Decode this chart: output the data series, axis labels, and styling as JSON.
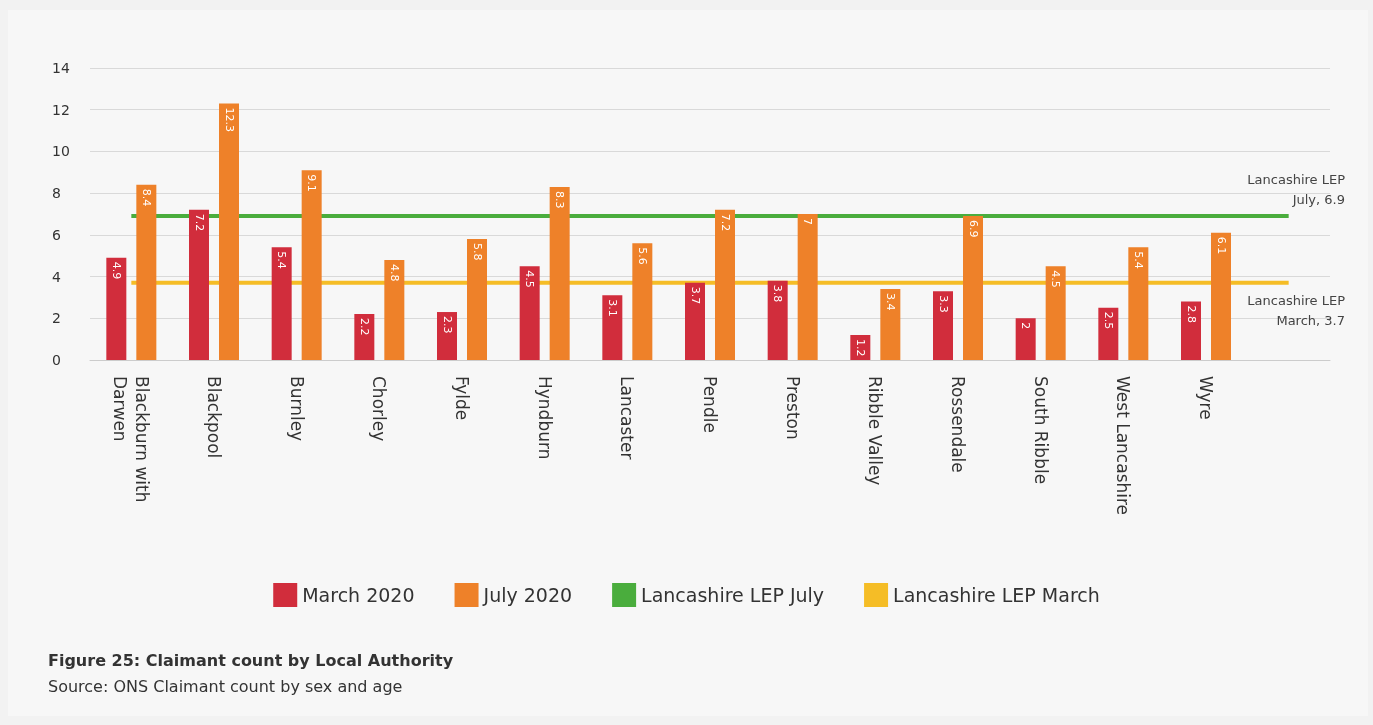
{
  "chart_data": {
    "type": "bar",
    "title": "Figure 25: Claimant count by Local Authority",
    "categories": [
      "Blackburn with Darwen",
      "Blackpool",
      "Burnley",
      "Chorley",
      "Fylde",
      "Hyndburn",
      "Lancaster",
      "Pendle",
      "Preston",
      "Ribble Valley",
      "Rossendale",
      "South Ribble",
      "West Lancashire",
      "Wyre",
      null
    ],
    "series": [
      {
        "name": "March 2020",
        "color": "#d12d3c",
        "values": [
          4.9,
          7.2,
          5.4,
          2.2,
          2.3,
          4.5,
          3.1,
          3.7,
          3.8,
          1.2,
          3.3,
          2,
          2.5,
          2.8,
          null
        ],
        "value_labels": [
          "4.9",
          "7.2",
          "5.4",
          "2.2",
          "2.3",
          "4.5",
          "3.1",
          "3.7",
          "3.8",
          "1.2",
          "3.3",
          "2",
          "2.5",
          "2.8",
          null
        ]
      },
      {
        "name": "July 2020",
        "color": "#ee8129",
        "values": [
          8.4,
          12.3,
          9.1,
          4.8,
          5.8,
          8.3,
          5.6,
          7.2,
          7,
          3.4,
          6.9,
          4.5,
          5.4,
          6.1,
          null
        ],
        "value_labels": [
          "8.4",
          "12.3",
          "9.1",
          "4.8",
          "5.8",
          "8.3",
          "5.6",
          "7.2",
          "7",
          "3.4",
          "6.9",
          "4.5",
          "5.4",
          "6.1",
          null
        ]
      },
      {
        "name": "Lancashire LEP July",
        "type": "line",
        "color": "#4aad3d",
        "values": [
          6.9,
          6.9,
          6.9,
          6.9,
          6.9,
          6.9,
          6.9,
          6.9,
          6.9,
          6.9,
          6.9,
          6.9,
          6.9,
          6.9,
          6.9
        ]
      },
      {
        "name": "Lancashire LEP March",
        "type": "line",
        "color": "#f5bd26",
        "values": [
          3.7,
          3.7,
          3.7,
          3.7,
          3.7,
          3.7,
          3.7,
          3.7,
          3.7,
          3.7,
          3.7,
          3.7,
          3.7,
          3.7,
          3.7
        ]
      }
    ],
    "ylim": [
      0,
      14
    ],
    "yticks": [
      0,
      2,
      4,
      6,
      8,
      10,
      12,
      14
    ],
    "grid": "y",
    "legend": "bottom",
    "marker": "none",
    "annotations": [
      "Lancashire LEP July, 6.9",
      "Lancashire LEP March, 3.7",
      "Source: ONS Claimant count by sex and age"
    ]
  }
}
